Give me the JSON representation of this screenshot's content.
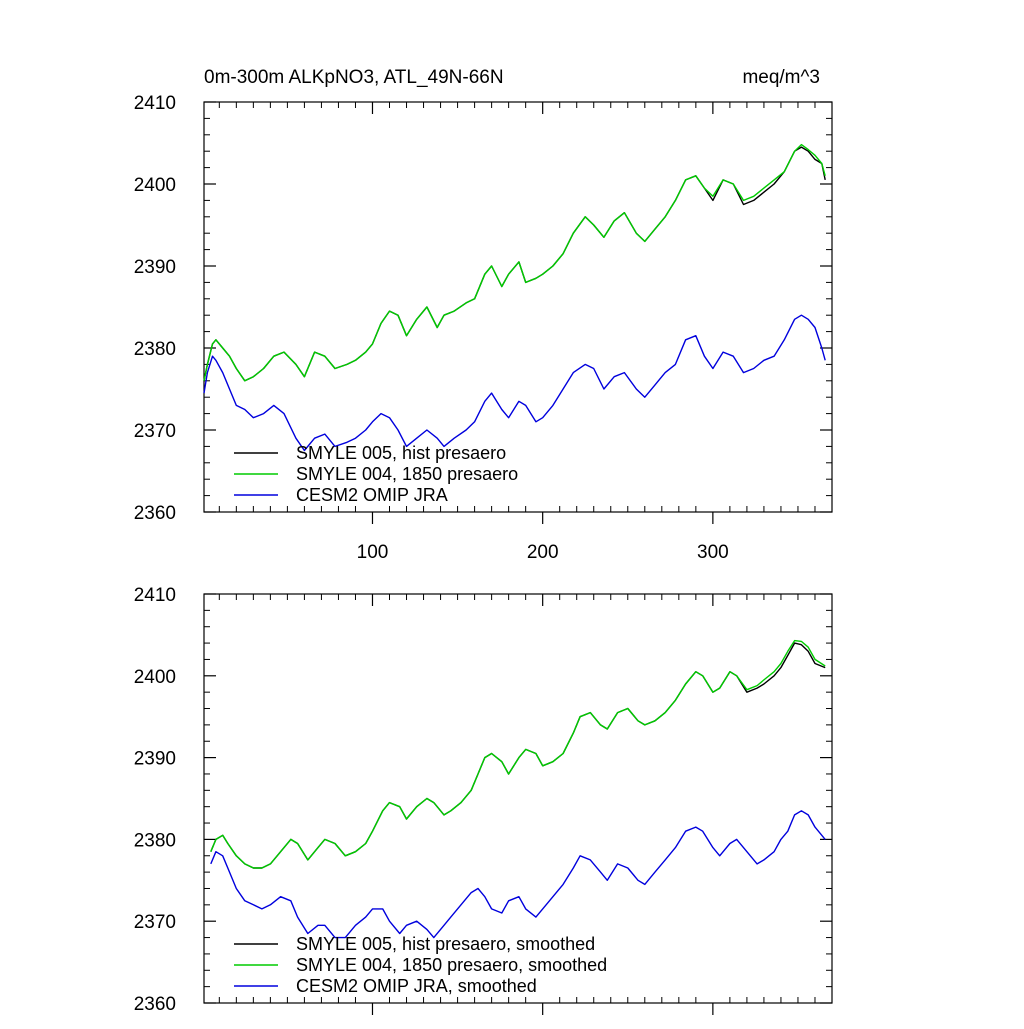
{
  "header": {
    "title": "0m-300m ALKpNO3, ATL_49N-66N",
    "units": "meq/m^3"
  },
  "chart_data": [
    {
      "type": "line",
      "xlim": [
        1,
        370
      ],
      "ylim": [
        2360,
        2410
      ],
      "x_ticks": [
        100,
        200,
        300
      ],
      "x_tick_labels": [
        "100",
        "200",
        "300"
      ],
      "y_ticks": [
        2360,
        2370,
        2380,
        2390,
        2400,
        2410
      ],
      "y_tick_labels": [
        "2360",
        "2370",
        "2380",
        "2390",
        "2400",
        "2410"
      ],
      "grid": false,
      "legend_position": "bottom-left",
      "series": [
        {
          "name": "SMYLE 005, hist presaero",
          "color": "#000000",
          "x": [
            1,
            3,
            6,
            8,
            12,
            16,
            20,
            25,
            30,
            36,
            42,
            48,
            55,
            60,
            66,
            72,
            78,
            85,
            90,
            96,
            100,
            105,
            110,
            115,
            120,
            126,
            132,
            138,
            142,
            148,
            155,
            160,
            166,
            170,
            176,
            180,
            186,
            190,
            196,
            200,
            206,
            212,
            218,
            225,
            230,
            236,
            242,
            248,
            255,
            260,
            266,
            272,
            278,
            284,
            290,
            295,
            300,
            306,
            312,
            318,
            324,
            330,
            336,
            342,
            348,
            352,
            356,
            360,
            364,
            366
          ],
          "y": [
            2376,
            2378,
            2380.5,
            2381,
            2380,
            2379,
            2377.5,
            2376,
            2376.5,
            2377.5,
            2379,
            2379.5,
            2378,
            2376.5,
            2379.5,
            2379,
            2377.5,
            2378,
            2378.5,
            2379.5,
            2380.5,
            2383,
            2384.5,
            2384,
            2381.5,
            2383.5,
            2385,
            2382.5,
            2384,
            2384.5,
            2385.5,
            2386,
            2389,
            2390,
            2387.5,
            2389,
            2390.5,
            2388,
            2388.5,
            2389,
            2390,
            2391.5,
            2394,
            2396,
            2395,
            2393.5,
            2395.5,
            2396.5,
            2394,
            2393,
            2394.5,
            2396,
            2398,
            2400.5,
            2401,
            2399.5,
            2398,
            2400.5,
            2400,
            2397.5,
            2398,
            2399,
            2400,
            2401.5,
            2404,
            2404.5,
            2404,
            2403,
            2402.5,
            2400.5
          ]
        },
        {
          "name": "SMYLE 004, 1850 presaero",
          "color": "#00cc00",
          "x": [
            1,
            3,
            6,
            8,
            12,
            16,
            20,
            25,
            30,
            36,
            42,
            48,
            55,
            60,
            66,
            72,
            78,
            85,
            90,
            96,
            100,
            105,
            110,
            115,
            120,
            126,
            132,
            138,
            142,
            148,
            155,
            160,
            166,
            170,
            176,
            180,
            186,
            190,
            196,
            200,
            206,
            212,
            218,
            225,
            230,
            236,
            242,
            248,
            255,
            260,
            266,
            272,
            278,
            284,
            290,
            295,
            300,
            306,
            312,
            318,
            324,
            330,
            336,
            342,
            348,
            352,
            356,
            360,
            364,
            366
          ],
          "y": [
            2376,
            2378,
            2380.5,
            2381,
            2380,
            2379,
            2377.5,
            2376,
            2376.5,
            2377.5,
            2379,
            2379.5,
            2378,
            2376.5,
            2379.5,
            2379,
            2377.5,
            2378,
            2378.5,
            2379.5,
            2380.5,
            2383,
            2384.5,
            2384,
            2381.5,
            2383.5,
            2385,
            2382.5,
            2384,
            2384.5,
            2385.5,
            2386,
            2389,
            2390,
            2387.5,
            2389,
            2390.5,
            2388,
            2388.5,
            2389,
            2390,
            2391.5,
            2394,
            2396,
            2395,
            2393.5,
            2395.5,
            2396.5,
            2394,
            2393,
            2394.5,
            2396,
            2398,
            2400.5,
            2401,
            2399.5,
            2398.5,
            2400.5,
            2400,
            2398,
            2398.5,
            2399.5,
            2400.5,
            2401.5,
            2404,
            2404.8,
            2404.2,
            2403.5,
            2402.5,
            2401
          ]
        },
        {
          "name": "CESM2 OMIP JRA",
          "color": "#0000dd",
          "x": [
            1,
            3,
            6,
            8,
            12,
            16,
            20,
            25,
            30,
            36,
            42,
            48,
            55,
            60,
            66,
            72,
            78,
            85,
            90,
            96,
            100,
            105,
            110,
            115,
            120,
            126,
            132,
            138,
            142,
            148,
            155,
            160,
            166,
            170,
            176,
            180,
            186,
            190,
            196,
            200,
            206,
            212,
            218,
            225,
            230,
            236,
            242,
            248,
            255,
            260,
            266,
            272,
            278,
            284,
            290,
            295,
            300,
            306,
            312,
            318,
            324,
            330,
            336,
            342,
            348,
            352,
            356,
            360,
            364,
            366
          ],
          "y": [
            2374.5,
            2377,
            2379,
            2378.5,
            2377,
            2375,
            2373,
            2372.5,
            2371.5,
            2372,
            2373,
            2372,
            2369,
            2367.5,
            2369,
            2369.5,
            2368,
            2368.5,
            2369,
            2370,
            2371,
            2372,
            2371.5,
            2370,
            2368,
            2369,
            2370,
            2369,
            2368,
            2369,
            2370,
            2371,
            2373.5,
            2374.5,
            2372.5,
            2371.5,
            2373.5,
            2373,
            2371,
            2371.5,
            2373,
            2375,
            2377,
            2378,
            2377.5,
            2375,
            2376.5,
            2377,
            2375,
            2374,
            2375.5,
            2377,
            2378,
            2381,
            2381.5,
            2379,
            2377.5,
            2379.5,
            2379,
            2377,
            2377.5,
            2378.5,
            2379,
            2381,
            2383.5,
            2384,
            2383.5,
            2382.5,
            2380,
            2378.5
          ]
        }
      ]
    },
    {
      "type": "line",
      "xlim": [
        1,
        370
      ],
      "ylim": [
        2360,
        2410
      ],
      "x_ticks": [
        100,
        200,
        300
      ],
      "y_ticks": [
        2360,
        2370,
        2380,
        2390,
        2400,
        2410
      ],
      "y_tick_labels": [
        "2360",
        "2370",
        "2380",
        "2390",
        "2400",
        "2410"
      ],
      "grid": false,
      "legend_position": "bottom-left",
      "series": [
        {
          "name": "SMYLE 005, hist presaero, smoothed",
          "color": "#000000",
          "x": [
            5,
            8,
            12,
            15,
            20,
            25,
            30,
            35,
            40,
            46,
            52,
            56,
            62,
            68,
            72,
            78,
            84,
            90,
            96,
            100,
            106,
            110,
            116,
            120,
            126,
            132,
            136,
            142,
            146,
            152,
            158,
            162,
            166,
            170,
            176,
            180,
            186,
            190,
            196,
            200,
            206,
            212,
            218,
            222,
            228,
            234,
            238,
            244,
            250,
            256,
            260,
            266,
            272,
            278,
            284,
            290,
            294,
            300,
            304,
            310,
            314,
            320,
            326,
            330,
            336,
            340,
            344,
            348,
            352,
            356,
            360,
            366
          ],
          "y": [
            2378.5,
            2380,
            2380.5,
            2379.5,
            2378,
            2377,
            2376.5,
            2376.5,
            2377,
            2378.5,
            2380,
            2379.5,
            2377.5,
            2379,
            2380,
            2379.5,
            2378,
            2378.5,
            2379.5,
            2381,
            2383.5,
            2384.5,
            2384,
            2382.5,
            2384,
            2385,
            2384.5,
            2383,
            2383.5,
            2384.5,
            2386,
            2388,
            2390,
            2390.5,
            2389.5,
            2388,
            2390,
            2391,
            2390.5,
            2389,
            2389.5,
            2390.5,
            2393,
            2395,
            2395.5,
            2394,
            2393.5,
            2395.5,
            2396,
            2394.5,
            2394,
            2394.5,
            2395.5,
            2397,
            2399,
            2400.5,
            2400,
            2398,
            2398.5,
            2400.5,
            2400,
            2398,
            2398.5,
            2399,
            2400,
            2401,
            2402.5,
            2404,
            2403.8,
            2403,
            2401.5,
            2401
          ]
        },
        {
          "name": "SMYLE 004, 1850 presaero, smoothed",
          "color": "#00cc00",
          "x": [
            5,
            8,
            12,
            15,
            20,
            25,
            30,
            35,
            40,
            46,
            52,
            56,
            62,
            68,
            72,
            78,
            84,
            90,
            96,
            100,
            106,
            110,
            116,
            120,
            126,
            132,
            136,
            142,
            146,
            152,
            158,
            162,
            166,
            170,
            176,
            180,
            186,
            190,
            196,
            200,
            206,
            212,
            218,
            222,
            228,
            234,
            238,
            244,
            250,
            256,
            260,
            266,
            272,
            278,
            284,
            290,
            294,
            300,
            304,
            310,
            314,
            320,
            326,
            330,
            336,
            340,
            344,
            348,
            352,
            356,
            360,
            366
          ],
          "y": [
            2378.5,
            2380,
            2380.5,
            2379.5,
            2378,
            2377,
            2376.5,
            2376.5,
            2377,
            2378.5,
            2380,
            2379.5,
            2377.5,
            2379,
            2380,
            2379.5,
            2378,
            2378.5,
            2379.5,
            2381,
            2383.5,
            2384.5,
            2384,
            2382.5,
            2384,
            2385,
            2384.5,
            2383,
            2383.5,
            2384.5,
            2386,
            2388,
            2390,
            2390.5,
            2389.5,
            2388,
            2390,
            2391,
            2390.5,
            2389,
            2389.5,
            2390.5,
            2393,
            2395,
            2395.5,
            2394,
            2393.5,
            2395.5,
            2396,
            2394.5,
            2394,
            2394.5,
            2395.5,
            2397,
            2399,
            2400.5,
            2400,
            2398,
            2398.5,
            2400.5,
            2400,
            2398.3,
            2398.8,
            2399.5,
            2400.5,
            2401.5,
            2403,
            2404.3,
            2404.2,
            2403.5,
            2402,
            2401.2
          ]
        },
        {
          "name": "CESM2 OMIP JRA, smoothed",
          "color": "#0000dd",
          "x": [
            5,
            8,
            12,
            15,
            20,
            25,
            30,
            35,
            40,
            46,
            52,
            56,
            62,
            68,
            72,
            78,
            84,
            90,
            96,
            100,
            106,
            110,
            116,
            120,
            126,
            132,
            136,
            142,
            146,
            152,
            158,
            162,
            166,
            170,
            176,
            180,
            186,
            190,
            196,
            200,
            206,
            212,
            218,
            222,
            228,
            234,
            238,
            244,
            250,
            256,
            260,
            266,
            272,
            278,
            284,
            290,
            294,
            300,
            304,
            310,
            314,
            320,
            326,
            330,
            336,
            340,
            344,
            348,
            352,
            356,
            360,
            366
          ],
          "y": [
            2377,
            2378.5,
            2378,
            2376.5,
            2374,
            2372.5,
            2372,
            2371.5,
            2372,
            2373,
            2372.5,
            2370.5,
            2368.5,
            2369.5,
            2369.5,
            2368,
            2368,
            2369.5,
            2370.5,
            2371.5,
            2371.5,
            2370,
            2368.5,
            2369.5,
            2370,
            2369,
            2368,
            2369.5,
            2370.5,
            2372,
            2373.5,
            2374,
            2373,
            2371.5,
            2371,
            2372.5,
            2373,
            2371.5,
            2370.5,
            2371.5,
            2373,
            2374.5,
            2376.5,
            2378,
            2377.5,
            2376,
            2375,
            2377,
            2376.5,
            2375,
            2374.5,
            2376,
            2377.5,
            2379,
            2381,
            2381.5,
            2381,
            2379,
            2378,
            2379.5,
            2380,
            2378.5,
            2377,
            2377.5,
            2378.5,
            2380,
            2381,
            2383,
            2383.5,
            2383,
            2381.5,
            2380
          ]
        }
      ]
    }
  ]
}
